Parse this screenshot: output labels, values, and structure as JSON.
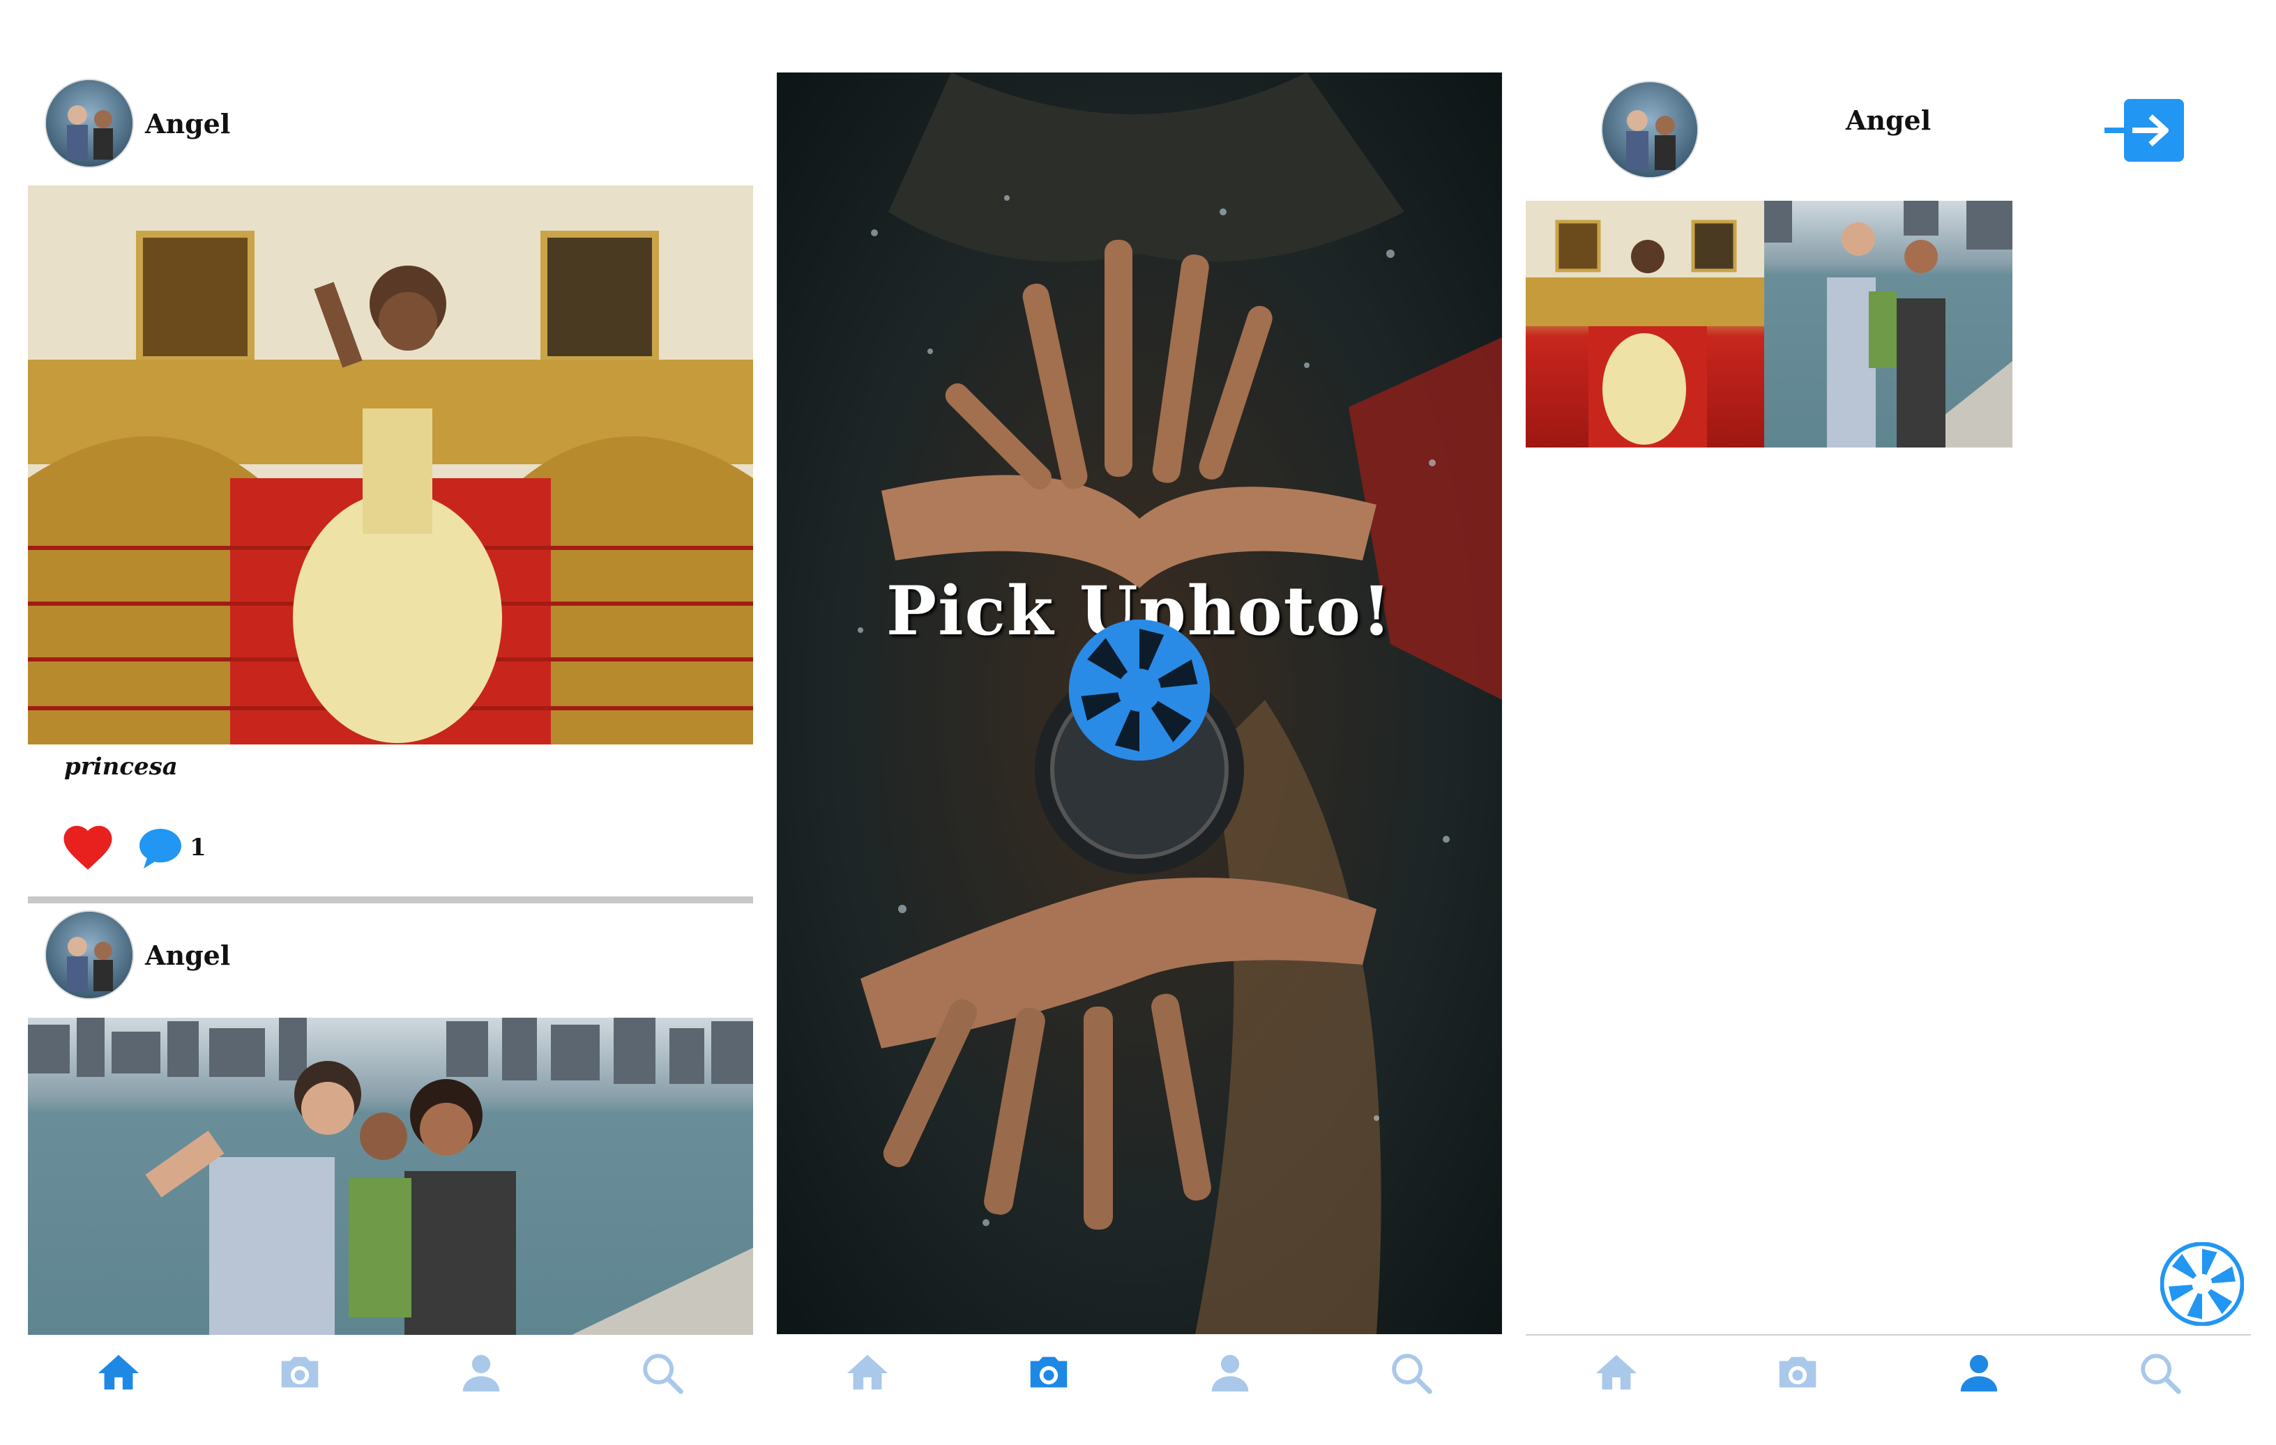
{
  "feed": {
    "posts": [
      {
        "username": "Angel",
        "caption": "princesa",
        "comment_count": "1"
      },
      {
        "username": "Angel"
      }
    ]
  },
  "splash": {
    "title": "Pick Uphoto!"
  },
  "profile": {
    "username": "Angel"
  },
  "tabs": [
    "home-icon",
    "camera-icon",
    "profile-icon",
    "search-icon"
  ],
  "colors": {
    "active_tab": "#1e88e5",
    "inactive_tab": "#a9c8ea",
    "like": "#e8211e",
    "accent": "#2196f3"
  }
}
